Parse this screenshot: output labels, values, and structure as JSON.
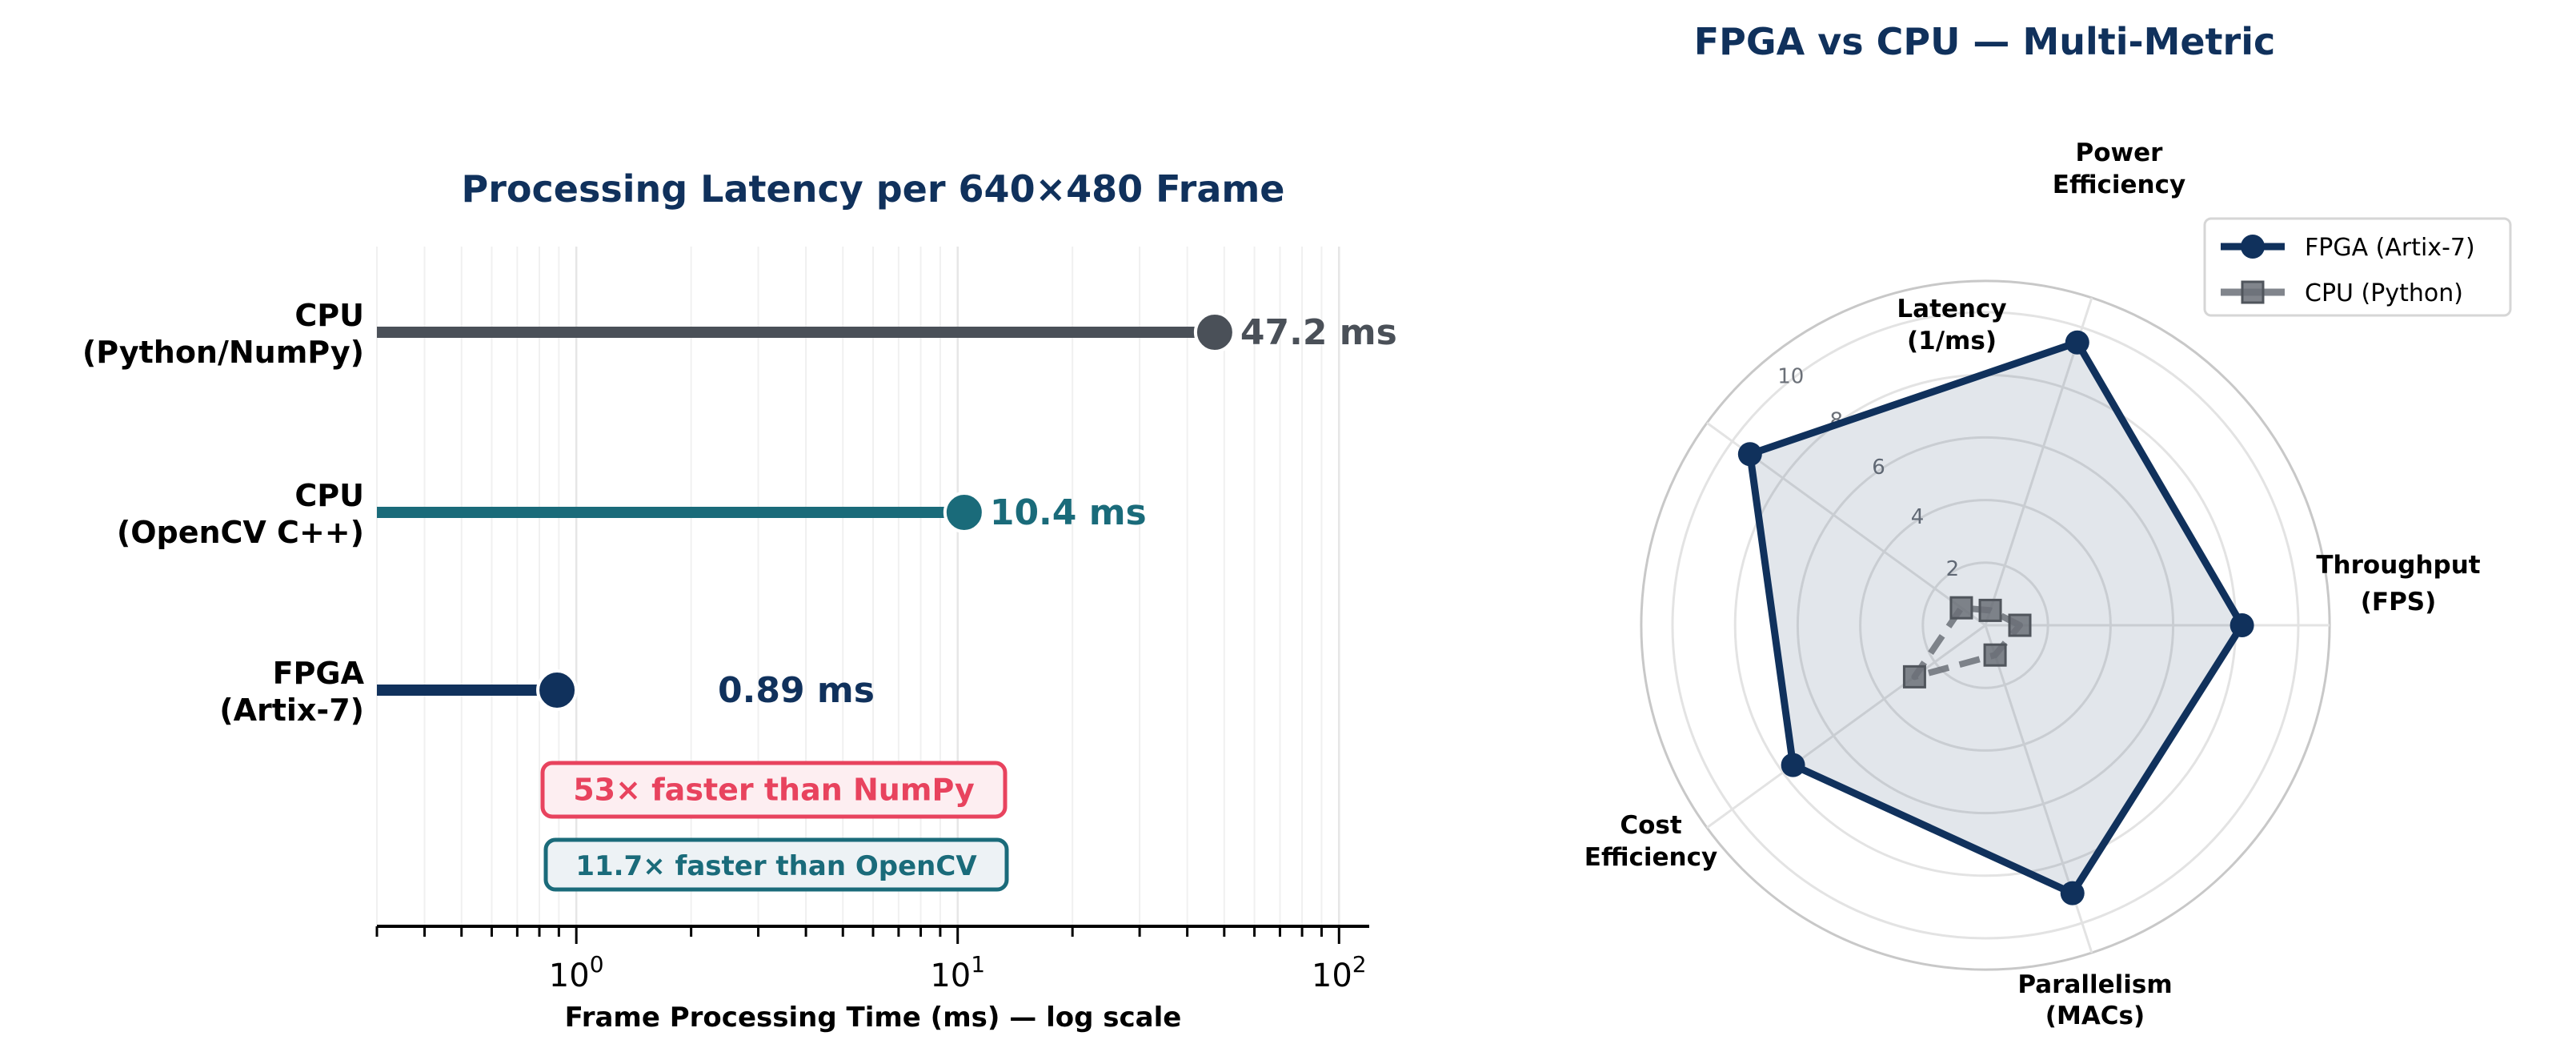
{
  "chart_data": [
    {
      "type": "lollipop",
      "title": "Processing Latency per 640×480 Frame",
      "xlabel": "Frame Processing Time (ms) — log scale",
      "ylabel": "",
      "xscale": "log",
      "xlim": [
        0.3,
        120
      ],
      "xticks": [
        {
          "value": 1,
          "label": "10^0"
        },
        {
          "value": 10,
          "label": "10^1"
        },
        {
          "value": 100,
          "label": "10^2"
        }
      ],
      "grid": "vertical, minor and major",
      "categories": [
        {
          "line1": "CPU",
          "line2": "(Python/NumPy)"
        },
        {
          "line1": "CPU",
          "line2": "(OpenCV C++)"
        },
        {
          "line1": "FPGA",
          "line2": "(Artix-7)"
        }
      ],
      "values": [
        47.2,
        10.4,
        0.89
      ],
      "value_labels": [
        "47.2 ms",
        "10.4 ms",
        "0.89 ms"
      ],
      "colors": [
        "#4a5058",
        "#1a6b7a",
        "#10315c"
      ],
      "annotations": [
        {
          "text": "53× faster than NumPy",
          "color": "#e8435e",
          "fill": "#fdeef1"
        },
        {
          "text": "11.7× faster than OpenCV",
          "color": "#1a6b7a",
          "fill": "#edf2f5"
        }
      ]
    },
    {
      "type": "radar",
      "title": "FPGA vs CPU — Multi-Metric",
      "axes": [
        {
          "line1": "Throughput",
          "line2": "(FPS)"
        },
        {
          "line1": "Power",
          "line2": "Efficiency"
        },
        {
          "line1": "Latency",
          "line2": "(1/ms)"
        },
        {
          "line1": "Cost",
          "line2": "Efficiency"
        },
        {
          "line1": "Parallelism",
          "line2": "(MACs)"
        }
      ],
      "rlim": [
        0,
        11
      ],
      "rticks": [
        2,
        4,
        6,
        8,
        10
      ],
      "legend_position": "top-right",
      "series": [
        {
          "name": "FPGA (Artix-7)",
          "values": [
            8.2,
            9.5,
            9.3,
            7.6,
            9.0
          ],
          "color": "#10315c",
          "marker": "circle",
          "style": "solid"
        },
        {
          "name": "CPU (Python)",
          "values": [
            1.1,
            0.5,
            0.95,
            2.8,
            1.0
          ],
          "color": "#6b7078",
          "marker": "square",
          "style": "dashed"
        }
      ]
    }
  ]
}
